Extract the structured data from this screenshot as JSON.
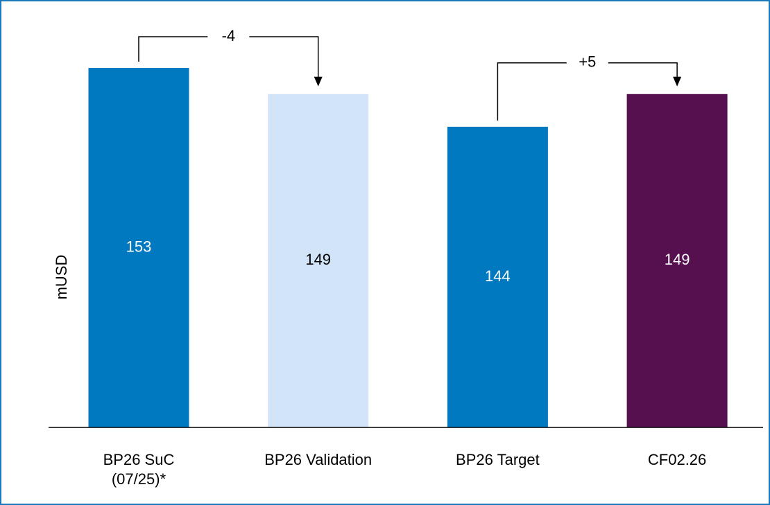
{
  "chart_data": {
    "type": "bar",
    "y_label": "mUSD",
    "categories": [
      "BP26 SuC\n(07/25)*",
      "BP26 Validation",
      "BP26 Target",
      "CF02.26"
    ],
    "values": [
      153,
      149,
      144,
      149
    ],
    "colors": [
      "#0079c1",
      "#d1e4f8",
      "#0079c1",
      "#56104f"
    ],
    "label_colors": [
      "#ffffff",
      "#000000",
      "#ffffff",
      "#ffffff"
    ],
    "ylim": [
      98,
      160
    ],
    "annotations": [
      {
        "text": "-4",
        "from": 0,
        "to": 1
      },
      {
        "text": "+5",
        "from": 2,
        "to": 3
      }
    ]
  }
}
